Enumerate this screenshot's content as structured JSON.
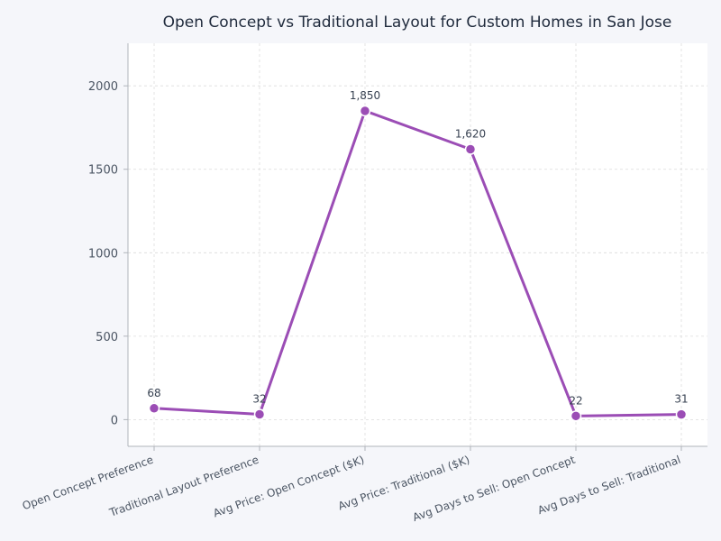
{
  "chart_data": {
    "type": "line",
    "title": "Open Concept vs Traditional Layout for Custom Homes in San Jose",
    "xlabel": "",
    "ylabel": "",
    "categories": [
      "Open Concept Preference",
      "Traditional Layout Preference",
      "Avg Price: Open Concept ($K)",
      "Avg Price: Traditional ($K)",
      "Avg Days to Sell: Open Concept",
      "Avg Days to Sell: Traditional"
    ],
    "series": [
      {
        "values": [
          68,
          32,
          1850,
          1620,
          22,
          31
        ],
        "data_labels": [
          "68",
          "32",
          "1,850",
          "1,620",
          "22",
          "31"
        ]
      }
    ],
    "ylim": [
      -160,
      2255
    ],
    "yticks": [
      0,
      500,
      1000,
      1500,
      2000
    ],
    "grid": true,
    "legend": "none",
    "colors": {
      "line": "#9b4db5",
      "marker_edge": "#ffffff",
      "grid": "#dcdcdc",
      "axis": "#b0b4bb",
      "plot_bg": "#ffffff",
      "page_bg": "#f5f6fa"
    }
  }
}
